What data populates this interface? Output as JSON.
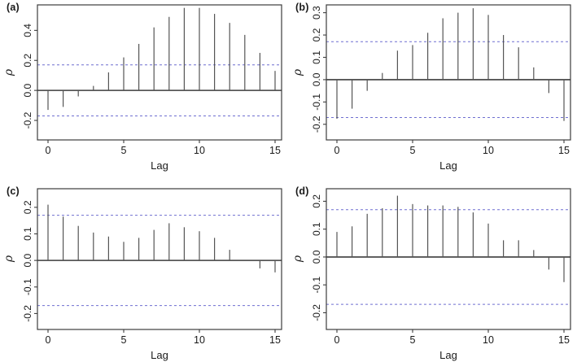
{
  "chart_data": {
    "type": "bar",
    "subtype": "acf-spike-plots",
    "grid": "2x2",
    "lags": [
      0,
      1,
      2,
      3,
      4,
      5,
      6,
      7,
      8,
      9,
      10,
      11,
      12,
      13,
      14,
      15
    ],
    "panels": [
      {
        "label": "(a)",
        "xlabel": "Lag",
        "ylabel": "ρ",
        "xticks": [
          0,
          5,
          10,
          15
        ],
        "yticks": [
          -0.2,
          0.0,
          0.2,
          0.4
        ],
        "ylim": [
          -0.33,
          0.57
        ],
        "conf_band": 0.17,
        "values": [
          -0.13,
          -0.11,
          -0.04,
          0.03,
          0.12,
          0.22,
          0.31,
          0.42,
          0.49,
          0.55,
          0.55,
          0.51,
          0.45,
          0.37,
          0.25,
          0.13
        ]
      },
      {
        "label": "(b)",
        "xlabel": "Lag",
        "ylabel": "ρ",
        "xticks": [
          0,
          5,
          10,
          15
        ],
        "yticks": [
          -0.2,
          -0.1,
          0.0,
          0.1,
          0.2,
          0.3
        ],
        "ylim": [
          -0.27,
          0.335
        ],
        "conf_band": 0.17,
        "values": [
          -0.175,
          -0.13,
          -0.05,
          0.03,
          0.13,
          0.155,
          0.21,
          0.275,
          0.3,
          0.32,
          0.29,
          0.2,
          0.145,
          0.055,
          -0.06,
          -0.185
        ]
      },
      {
        "label": "(c)",
        "xlabel": "Lag",
        "ylabel": "ρ",
        "xticks": [
          0,
          5,
          10,
          15
        ],
        "yticks": [
          -0.2,
          -0.1,
          0.0,
          0.1,
          0.2
        ],
        "ylim": [
          -0.26,
          0.27
        ],
        "conf_band": 0.17,
        "values": [
          0.21,
          0.165,
          0.13,
          0.105,
          0.09,
          0.07,
          0.085,
          0.115,
          0.14,
          0.125,
          0.11,
          0.085,
          0.04,
          0.0,
          -0.03,
          -0.045
        ]
      },
      {
        "label": "(d)",
        "xlabel": "Lag",
        "ylabel": "ρ",
        "xticks": [
          0,
          5,
          10,
          15
        ],
        "yticks": [
          -0.2,
          -0.1,
          0.0,
          0.1,
          0.2
        ],
        "ylim": [
          -0.26,
          0.245
        ],
        "conf_band": 0.17,
        "values": [
          0.09,
          0.11,
          0.155,
          0.175,
          0.22,
          0.19,
          0.185,
          0.185,
          0.18,
          0.16,
          0.12,
          0.06,
          0.06,
          0.025,
          -0.045,
          -0.09
        ]
      }
    ],
    "style": {
      "background": "#ffffff",
      "spike_color": "#555555",
      "zero_line_color": "#3d3d3d",
      "axis_color": "#3d3d3d",
      "conf_line_color": "#6f6fd0",
      "text_color": "#1a1a1a"
    }
  }
}
